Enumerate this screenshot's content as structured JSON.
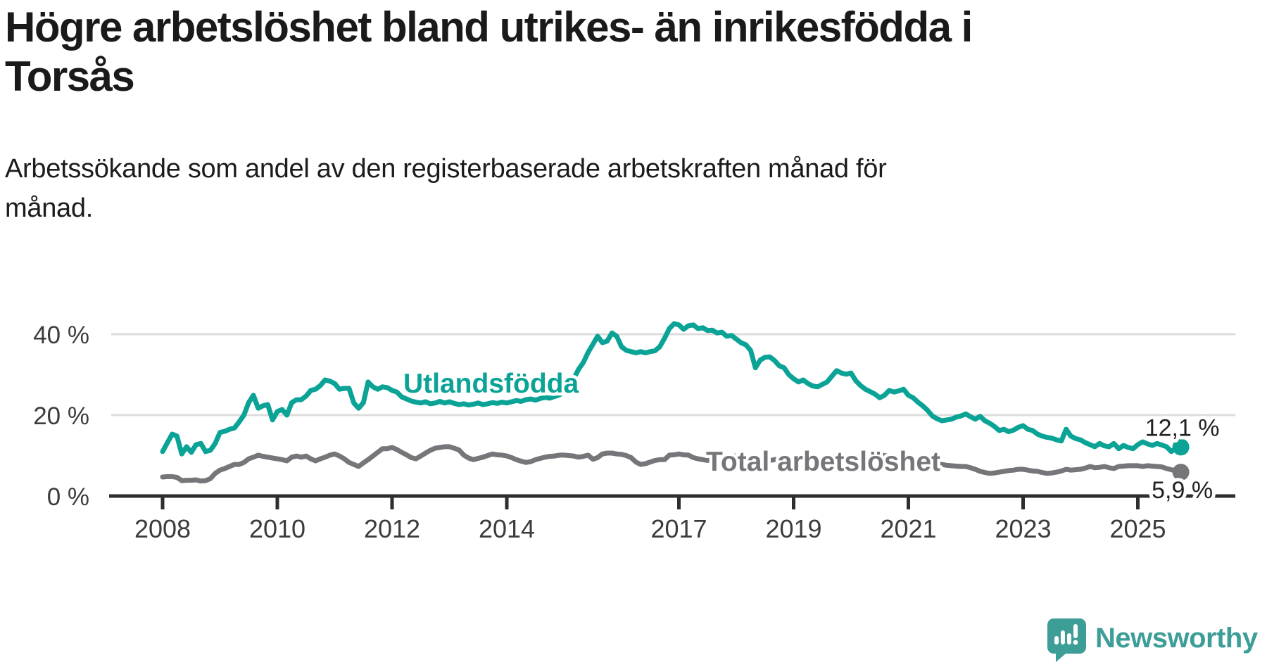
{
  "title": {
    "line1": "Högre arbetslöshet bland utrikes- än inrikesfödda i",
    "line2": "Torsås"
  },
  "subtitle": {
    "line1": "Arbetssökande som andel av den registerbaserade arbetskraften månad för",
    "line2": "månad."
  },
  "branding": {
    "logo_text": "Newsworthy",
    "logo_color": "#3d9e97"
  },
  "colors": {
    "teal_series": "#0aa396",
    "gray_series": "#76767a",
    "title_text": "#1a1a1a",
    "axis_line": "#2e2e2e",
    "tick_label": "#3c3c3c",
    "gridline": "#dcdcdc",
    "halo": "#ffffff"
  },
  "chart_data": {
    "type": "line",
    "title": "Högre arbetslöshet bland utrikes- än inrikesfödda i Torsås",
    "subtitle": "Arbetssökande som andel av den registerbaserade arbetskraften månad för månad.",
    "unit": "%",
    "x_monthly_start": "2008-01",
    "x_monthly_end": "2025-10",
    "x_ticks": [
      {
        "label": "2008",
        "year": 2008
      },
      {
        "label": "2010",
        "year": 2010
      },
      {
        "label": "2012",
        "year": 2012
      },
      {
        "label": "2014",
        "year": 2014
      },
      {
        "label": "2017",
        "year": 2017
      },
      {
        "label": "2019",
        "year": 2019
      },
      {
        "label": "2021",
        "year": 2021
      },
      {
        "label": "2023",
        "year": 2023
      },
      {
        "label": "2025",
        "year": 2025
      }
    ],
    "y_ticks": [
      {
        "label": "40 %",
        "value": 40
      },
      {
        "label": "20 %",
        "value": 20
      },
      {
        "label": "0 %",
        "value": 0
      }
    ],
    "ylim": [
      0,
      44
    ],
    "grid": "horizontal-only",
    "legend_position": "inline-labels",
    "series": [
      {
        "name": "Utlandsfödda",
        "end_label": "12,1 %",
        "end_value": 12.1,
        "color": "#0aa396",
        "values": [
          11.0,
          13.2,
          15.3,
          14.8,
          10.4,
          12.2,
          10.8,
          12.7,
          13.0,
          11.0,
          11.3,
          13.0,
          15.7,
          16.0,
          16.5,
          16.8,
          18.3,
          20.0,
          23.1,
          24.9,
          21.7,
          22.3,
          22.6,
          18.8,
          20.9,
          21.4,
          20.0,
          23.1,
          23.8,
          23.8,
          24.7,
          26.1,
          26.4,
          27.3,
          28.7,
          28.4,
          27.8,
          26.4,
          26.6,
          26.6,
          23.0,
          21.7,
          23.1,
          28.2,
          27.0,
          26.4,
          27.0,
          26.8,
          26.1,
          25.7,
          24.5,
          24.0,
          23.5,
          23.2,
          23.0,
          23.3,
          22.8,
          23.0,
          23.4,
          23.0,
          23.3,
          22.9,
          22.6,
          22.8,
          22.5,
          22.7,
          23.0,
          22.6,
          22.8,
          23.1,
          22.9,
          23.2,
          23.0,
          23.3,
          23.6,
          23.4,
          23.8,
          24.0,
          23.7,
          24.1,
          24.4,
          24.2,
          24.6,
          25.0,
          26.0,
          27.5,
          29.0,
          31.3,
          33.0,
          35.5,
          37.5,
          39.5,
          37.9,
          38.3,
          40.3,
          39.5,
          36.9,
          36.0,
          35.7,
          35.4,
          35.7,
          35.4,
          35.7,
          35.9,
          36.9,
          39.0,
          41.4,
          42.6,
          42.3,
          41.2,
          42.1,
          42.3,
          41.4,
          41.6,
          40.9,
          41.0,
          40.3,
          40.5,
          39.5,
          39.7,
          38.8,
          37.9,
          37.4,
          36.0,
          31.7,
          33.6,
          34.3,
          34.4,
          33.5,
          32.2,
          31.7,
          30.0,
          29.0,
          28.2,
          28.7,
          27.8,
          27.2,
          27.0,
          27.6,
          28.2,
          29.6,
          31.0,
          30.4,
          30.1,
          30.4,
          28.5,
          27.3,
          26.4,
          25.8,
          25.2,
          24.3,
          24.9,
          26.1,
          25.7,
          26.0,
          26.4,
          24.9,
          24.3,
          23.2,
          22.3,
          21.2,
          19.8,
          19.1,
          18.6,
          18.8,
          19.0,
          19.5,
          19.8,
          20.3,
          19.6,
          19.0,
          19.7,
          18.6,
          18.0,
          17.2,
          16.2,
          16.5,
          15.9,
          16.3,
          17.0,
          17.4,
          16.5,
          16.2,
          15.3,
          14.8,
          14.5,
          14.3,
          13.9,
          13.6,
          16.5,
          14.8,
          14.2,
          13.9,
          13.2,
          12.7,
          12.2,
          13.0,
          12.4,
          12.2,
          13.0,
          11.7,
          12.5,
          12.0,
          11.7,
          12.7,
          13.4,
          12.9,
          12.5,
          13.0,
          12.6,
          12.2,
          11.0,
          11.8,
          12.1
        ]
      },
      {
        "name": "Total arbetslöshet",
        "end_label": "5,9 %",
        "end_value": 5.9,
        "color": "#76767a",
        "values": [
          4.7,
          4.8,
          4.8,
          4.6,
          3.8,
          3.9,
          3.9,
          4.0,
          3.7,
          3.8,
          4.3,
          5.6,
          6.4,
          6.8,
          7.3,
          7.8,
          7.8,
          8.3,
          9.2,
          9.6,
          10.1,
          9.8,
          9.6,
          9.4,
          9.2,
          9.0,
          8.7,
          9.6,
          9.9,
          9.6,
          9.9,
          9.2,
          8.7,
          9.2,
          9.6,
          10.1,
          10.4,
          9.9,
          9.2,
          8.3,
          7.8,
          7.3,
          8.2,
          9.0,
          9.9,
          10.8,
          11.7,
          11.7,
          12.0,
          11.5,
          10.8,
          10.2,
          9.5,
          9.2,
          9.9,
          10.6,
          11.3,
          11.8,
          12.0,
          12.2,
          12.2,
          11.8,
          11.4,
          10.1,
          9.4,
          9.0,
          9.3,
          9.6,
          10.0,
          10.4,
          10.2,
          10.1,
          9.9,
          9.5,
          9.0,
          8.6,
          8.3,
          8.5,
          9.0,
          9.3,
          9.6,
          9.8,
          9.9,
          10.1,
          10.1,
          10.0,
          9.9,
          9.6,
          9.8,
          10.1,
          9.1,
          9.5,
          10.4,
          10.6,
          10.6,
          10.4,
          10.3,
          10.0,
          9.5,
          8.4,
          7.8,
          8.0,
          8.4,
          8.8,
          9.0,
          9.0,
          10.1,
          10.2,
          10.4,
          10.2,
          10.1,
          9.5,
          9.2,
          9.0,
          8.8,
          9.0,
          9.3,
          9.5,
          9.6,
          9.8,
          9.9,
          9.6,
          9.2,
          8.8,
          8.5,
          8.3,
          8.5,
          8.8,
          9.0,
          9.2,
          9.3,
          9.4,
          9.5,
          9.3,
          9.0,
          8.7,
          8.5,
          8.4,
          8.6,
          8.9,
          9.2,
          9.4,
          9.5,
          9.6,
          9.7,
          9.5,
          9.8,
          10.2,
          10.4,
          10.5,
          10.3,
          10.0,
          9.8,
          9.6,
          9.4,
          9.2,
          9.3,
          9.1,
          8.9,
          8.6,
          8.4,
          8.2,
          8.0,
          7.8,
          7.6,
          7.5,
          7.4,
          7.3,
          7.3,
          7.0,
          6.6,
          6.1,
          5.8,
          5.6,
          5.7,
          5.9,
          6.1,
          6.3,
          6.4,
          6.6,
          6.6,
          6.4,
          6.2,
          6.1,
          5.8,
          5.6,
          5.7,
          5.9,
          6.2,
          6.6,
          6.4,
          6.5,
          6.6,
          6.9,
          7.3,
          7.0,
          7.1,
          7.3,
          7.0,
          6.8,
          7.3,
          7.4,
          7.5,
          7.5,
          7.5,
          7.3,
          7.5,
          7.4,
          7.3,
          7.2,
          6.8,
          6.5,
          6.2,
          5.9
        ]
      }
    ]
  }
}
